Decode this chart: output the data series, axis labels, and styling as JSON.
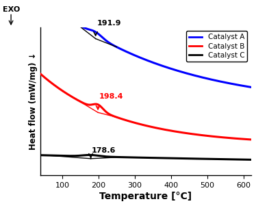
{
  "xlabel": "Temperature [°C]",
  "ylabel": "Heat flow (mW/mg) ↓",
  "exo_label": "EXO",
  "xlim": [
    40,
    620
  ],
  "legend_labels": [
    "Catalyst A",
    "Catalyst B",
    "Catalyst C"
  ],
  "legend_colors": [
    "#0000ff",
    "#ff0000",
    "#000000"
  ],
  "ann_A": {
    "text": "191.9",
    "xpeak": 191.9,
    "color": "#000000"
  },
  "ann_B": {
    "text": "198.4",
    "xpeak": 198.4,
    "color": "#ff0000"
  },
  "ann_C": {
    "text": "178.6",
    "xpeak": 178.6,
    "color": "#000000"
  },
  "background_color": "#ffffff"
}
